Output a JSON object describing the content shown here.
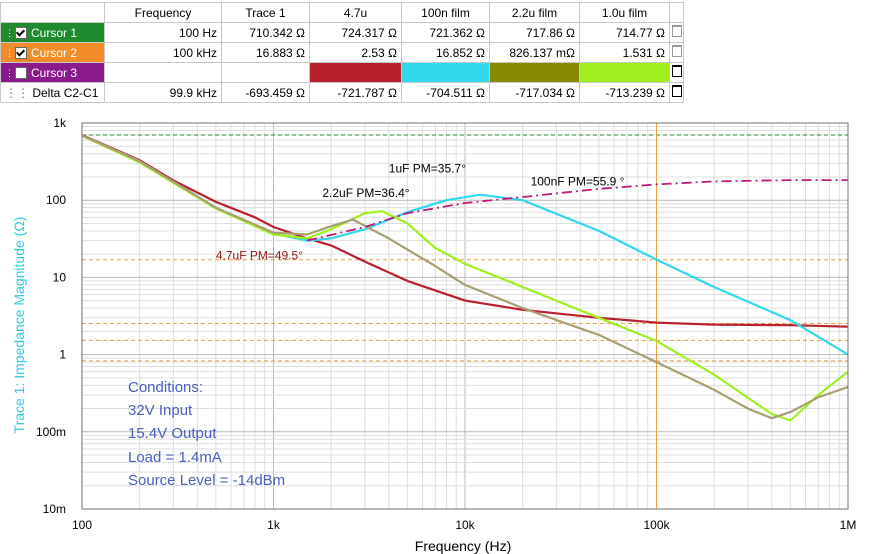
{
  "table": {
    "headers": [
      "",
      "Frequency",
      "Trace 1",
      "4.7u",
      "100n film",
      "2.2u film",
      "1.0u film"
    ],
    "rows": [
      {
        "label": "Cursor 1",
        "checked": true,
        "color": "#1e8b2e",
        "cells": [
          "100 Hz",
          "710.342 Ω",
          "724.317 Ω",
          "721.362 Ω",
          "717.86 Ω",
          "714.77 Ω"
        ]
      },
      {
        "label": "Cursor 2",
        "checked": true,
        "color": "#f28c28",
        "cells": [
          "100 kHz",
          "16.883 Ω",
          "2.53 Ω",
          "16.852 Ω",
          "826.137 mΩ",
          "1.531 Ω"
        ]
      },
      {
        "label": "Cursor 3",
        "checked": false,
        "color": "#8b1a8b",
        "swatches": [
          "#b8202e",
          "#30d8ec",
          "#8a8a00",
          "#a0f020"
        ]
      },
      {
        "label": "Delta C2-C1",
        "checked": null,
        "color": "#ffffff",
        "cells": [
          "99.9 kHz",
          "-693.459 Ω",
          "-721.787 Ω",
          "-704.511 Ω",
          "-717.034 Ω",
          "-713.239 Ω"
        ]
      }
    ]
  },
  "chart_data": {
    "type": "line",
    "xscale": "log",
    "yscale": "log",
    "xlim": [
      100,
      1000000
    ],
    "ylim": [
      0.01,
      1000
    ],
    "xlabel": "Frequency (Hz)",
    "ylabel": "Trace 1: Impedance Magnitude (Ω)",
    "x_ticks": [
      100,
      1000,
      10000,
      100000,
      1000000
    ],
    "x_tick_labels": [
      "100",
      "1k",
      "10k",
      "100k",
      "1M"
    ],
    "y_ticks": [
      0.01,
      0.1,
      1,
      10,
      100,
      1000
    ],
    "y_tick_labels": [
      "10m",
      "100m",
      "1",
      "10",
      "100",
      "1k"
    ],
    "grid": true,
    "series": [
      {
        "color": "#b8202e",
        "style": "solid",
        "x": [
          100,
          150,
          200,
          300,
          500,
          800,
          1000,
          1500,
          2000,
          3000,
          5000,
          10000,
          20000,
          50000,
          100000,
          200000,
          500000,
          1000000
        ],
        "y": [
          700,
          450,
          330,
          180,
          95,
          60,
          45,
          32,
          26,
          16,
          9,
          5,
          3.8,
          3,
          2.6,
          2.45,
          2.4,
          2.3
        ]
      },
      {
        "color": "#30d8ec",
        "style": "solid",
        "x": [
          100,
          200,
          500,
          1000,
          1500,
          2000,
          3000,
          5000,
          8000,
          12000,
          20000,
          50000,
          100000,
          200000,
          500000,
          1000000
        ],
        "y": [
          690,
          320,
          80,
          37,
          30,
          32,
          42,
          70,
          100,
          118,
          100,
          40,
          17,
          7.5,
          2.8,
          1.0
        ]
      },
      {
        "color": "#a0f020",
        "style": "solid",
        "x": [
          100,
          200,
          500,
          1000,
          1500,
          2000,
          3000,
          3700,
          5000,
          7000,
          10000,
          20000,
          50000,
          100000,
          200000,
          400000,
          500000,
          700000,
          1000000
        ],
        "y": [
          680,
          310,
          78,
          36,
          32,
          42,
          68,
          72,
          50,
          24,
          15,
          7.5,
          3,
          1.5,
          0.55,
          0.17,
          0.14,
          0.3,
          0.6
        ]
      },
      {
        "color": "#a8a070",
        "style": "solid",
        "x": [
          100,
          200,
          500,
          1000,
          1500,
          2000,
          2600,
          4000,
          7000,
          10000,
          20000,
          50000,
          100000,
          200000,
          300000,
          400000,
          500000,
          700000,
          1000000
        ],
        "y": [
          690,
          320,
          80,
          38,
          36,
          46,
          56,
          32,
          14,
          8,
          4,
          1.8,
          0.8,
          0.35,
          0.2,
          0.15,
          0.18,
          0.28,
          0.38
        ]
      },
      {
        "color": "#c0187a",
        "style": "dashdot",
        "x": [
          1500,
          3000,
          5000,
          10000,
          20000,
          50000,
          100000,
          200000,
          500000,
          1000000
        ],
        "y": [
          30,
          45,
          68,
          92,
          110,
          140,
          160,
          175,
          182,
          182
        ]
      }
    ],
    "h_markers": [
      {
        "y": 700,
        "color": "#1e8b2e"
      },
      {
        "y": 16.9,
        "color": "#e8a040"
      },
      {
        "y": 2.53,
        "color": "#e8a040"
      },
      {
        "y": 1.53,
        "color": "#e8a040"
      },
      {
        "y": 0.83,
        "color": "#e8a040"
      }
    ],
    "v_markers": [
      {
        "x": 100,
        "color": "#1e8b2e"
      },
      {
        "x": 100000,
        "color": "#e8a040"
      }
    ],
    "annotations": [
      {
        "text": "1uF PM=35.7°",
        "x": 4000,
        "y": 230
      },
      {
        "text": "100nF PM=55.9  °",
        "x": 22000,
        "y": 155
      },
      {
        "text": "2.2uF PM=36.4°",
        "x": 1800,
        "y": 110
      },
      {
        "text": "4.7uF PM=49.5°",
        "x": 500,
        "y": 17,
        "color": "#8b1a1a"
      }
    ]
  },
  "conditions": [
    "Conditions:",
    "32V Input",
    "15.4V Output",
    "Load = 1.4mA",
    "Source Level = -14dBm"
  ]
}
